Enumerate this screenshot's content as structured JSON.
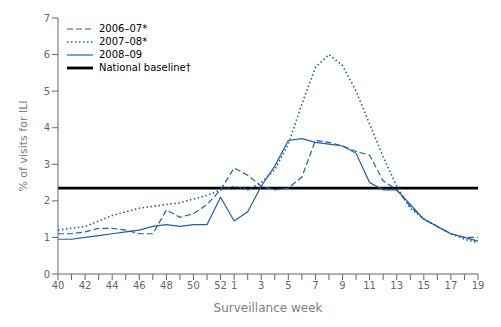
{
  "chart_data": {
    "type": "line",
    "xlabel": "Surveillance week",
    "ylabel": "% of visits for ILI",
    "categories": [
      "40",
      null,
      "42",
      null,
      "44",
      null,
      "46",
      null,
      "48",
      null,
      "50",
      null,
      "52",
      "1",
      null,
      "3",
      null,
      "5",
      null,
      "7",
      null,
      "9",
      null,
      "11",
      null,
      "13",
      null,
      "15",
      null,
      "17",
      null,
      "19"
    ],
    "series": [
      {
        "name": "2006–07*",
        "color": "#1f5fa6",
        "line_style": "dashed",
        "values": [
          1.1,
          1.1,
          1.15,
          1.25,
          1.25,
          1.2,
          1.1,
          1.1,
          1.75,
          1.55,
          1.65,
          1.9,
          2.3,
          2.9,
          2.7,
          2.4,
          2.3,
          2.35,
          2.65,
          3.65,
          3.6,
          3.5,
          3.35,
          3.25,
          2.55,
          2.3,
          1.85,
          1.5,
          1.3,
          1.1,
          1.0,
          1.0
        ]
      },
      {
        "name": "2007–08*",
        "color": "#1f5fa6",
        "line_style": "dotted",
        "values": [
          1.2,
          1.25,
          1.3,
          1.45,
          1.6,
          1.7,
          1.8,
          1.85,
          1.9,
          1.95,
          2.05,
          2.15,
          2.3,
          2.4,
          2.3,
          2.5,
          2.85,
          3.55,
          4.65,
          5.65,
          6.0,
          5.7,
          5.0,
          4.1,
          3.2,
          2.4,
          1.8,
          1.5,
          1.3,
          1.1,
          0.95,
          0.85
        ]
      },
      {
        "name": "2008–09",
        "color": "#1f5fa6",
        "line_style": "solid",
        "values": [
          0.95,
          0.95,
          1.0,
          1.05,
          1.1,
          1.15,
          1.2,
          1.3,
          1.35,
          1.3,
          1.35,
          1.35,
          2.1,
          1.45,
          1.7,
          2.4,
          2.95,
          3.65,
          3.7,
          3.6,
          3.55,
          3.5,
          3.3,
          2.5,
          2.3,
          2.3,
          1.9,
          1.5,
          1.3,
          1.1,
          1.0,
          0.9
        ]
      }
    ],
    "reference_lines": [
      {
        "name": "National baseline†",
        "value": 2.35,
        "color": "#000000",
        "line_style": "solid"
      }
    ],
    "ylim": [
      0,
      7
    ],
    "yticks": [
      0,
      1,
      2,
      3,
      4,
      5,
      6,
      7
    ],
    "grid": false,
    "legend": "upper left"
  }
}
